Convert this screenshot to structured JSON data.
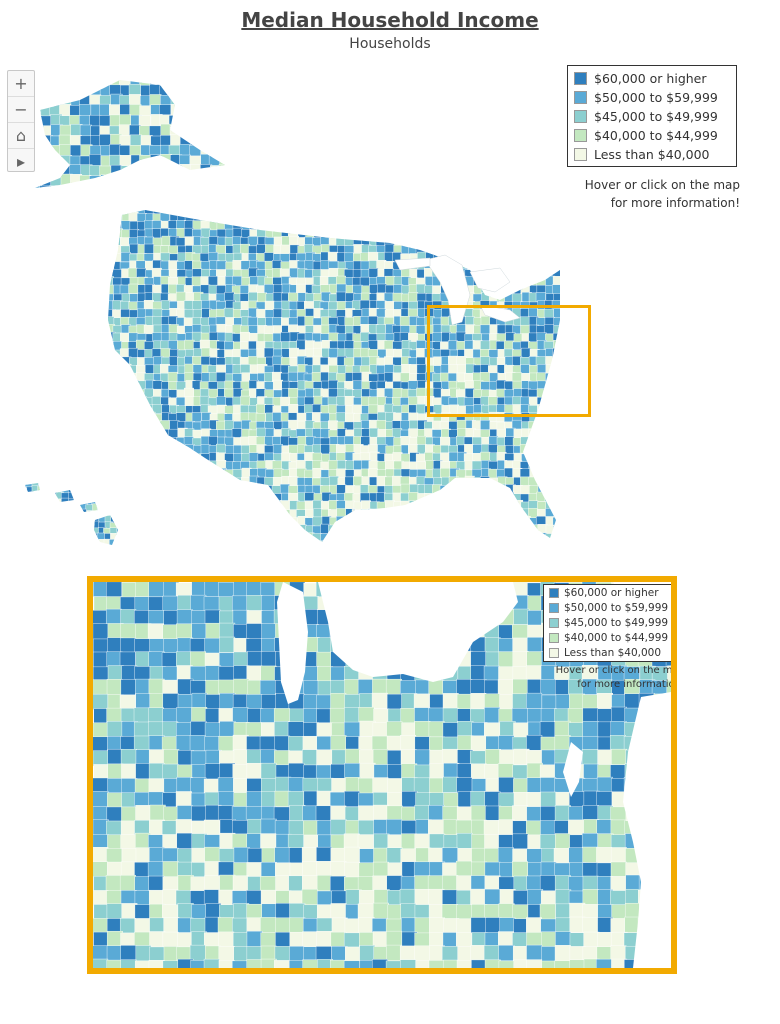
{
  "header": {
    "title": "Median Household Income",
    "subtitle": "Households"
  },
  "map_controls": [
    {
      "name": "zoom-in-icon",
      "glyph": "+"
    },
    {
      "name": "zoom-out-icon",
      "glyph": "−"
    },
    {
      "name": "home-icon",
      "glyph": "⌂"
    },
    {
      "name": "play-icon",
      "glyph": "▸"
    }
  ],
  "legend": {
    "items": [
      {
        "label": "$60,000 or higher",
        "color": "#2f7fbe"
      },
      {
        "label": "$50,000 to $59,999",
        "color": "#5aaad6"
      },
      {
        "label": "$45,000 to $49,999",
        "color": "#8ccfd0"
      },
      {
        "label": "$40,000 to $44,999",
        "color": "#c3e8c0"
      },
      {
        "label": "Less than $40,000",
        "color": "#f3f8e6"
      }
    ]
  },
  "hint": {
    "line1": "Hover or click on the map",
    "line2": "for more information!"
  },
  "zoom_hint": {
    "line1": "Hover or click on the map",
    "line2": "for more information!"
  },
  "colors": {
    "highlight": "#f2aa00",
    "county_border": "#ffffff",
    "water": "#ffffff"
  }
}
